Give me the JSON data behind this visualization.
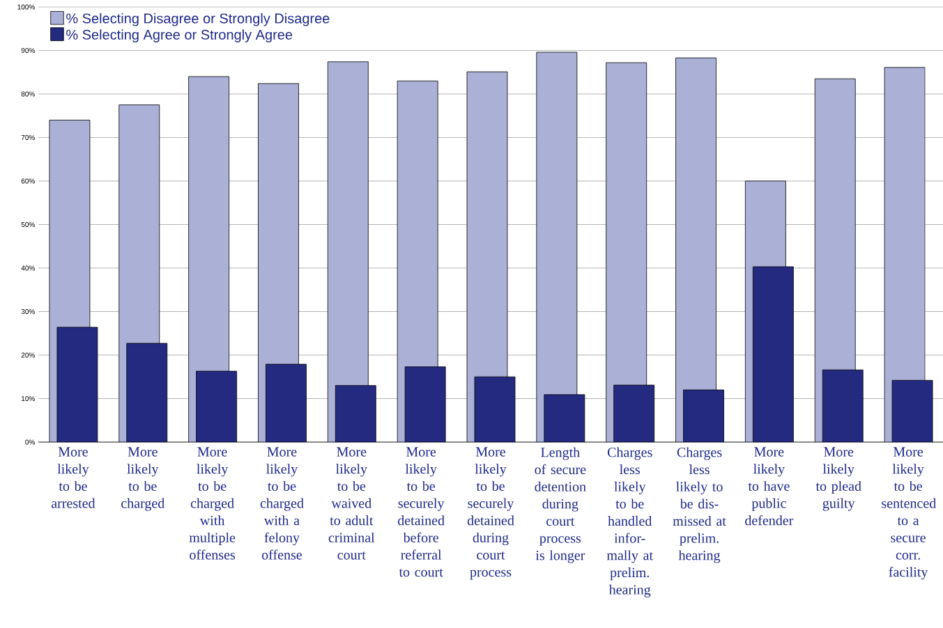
{
  "chart_data": {
    "type": "bar",
    "categories": [
      "More likely to be arrested",
      "More likely to be charged",
      "More likely to be charged with multiple offenses",
      "More likely to be charged with a felony offense",
      "More likely to be waived to adult criminal court",
      "More likely to be securely detained before referral to court",
      "More likely to be securely detained during court process",
      "Length of secure detention during court process is longer",
      "Charges less likely to be handled infor-mally at prelim. hearing",
      "Charges less likely to be dis-missed at prelim. hearing",
      "More likely to have public defender",
      "More likely to plead guilty",
      "More likely to be sentenced to a secure corr. facility"
    ],
    "series": [
      {
        "name": "% Selecting Disagree or Strongly Disagree",
        "color": "#aab0d6",
        "values": [
          74,
          77.5,
          84,
          82.4,
          87.4,
          83,
          85.1,
          89.6,
          87.2,
          88.3,
          60,
          83.5,
          86.1
        ]
      },
      {
        "name": "% Selecting Agree or Strongly Agree",
        "color": "#232a80",
        "values": [
          26.4,
          22.7,
          16.3,
          17.9,
          13,
          17.3,
          15,
          10.9,
          13.1,
          12,
          40.3,
          16.6,
          14.2
        ]
      }
    ],
    "ylim": [
      0,
      100
    ],
    "yticks": [
      {
        "value": 0,
        "label": "0%"
      },
      {
        "value": 10,
        "label": "10%"
      },
      {
        "value": 20,
        "label": "20%"
      },
      {
        "value": 30,
        "label": "30%"
      },
      {
        "value": 40,
        "label": "40%"
      },
      {
        "value": 50,
        "label": "50%"
      },
      {
        "value": 60,
        "label": "60%"
      },
      {
        "value": 70,
        "label": "70%"
      },
      {
        "value": 80,
        "label": "80%"
      },
      {
        "value": 90,
        "label": "90%"
      },
      {
        "value": 100,
        "label": "100%"
      }
    ],
    "grid": "y",
    "legend": "top left"
  }
}
